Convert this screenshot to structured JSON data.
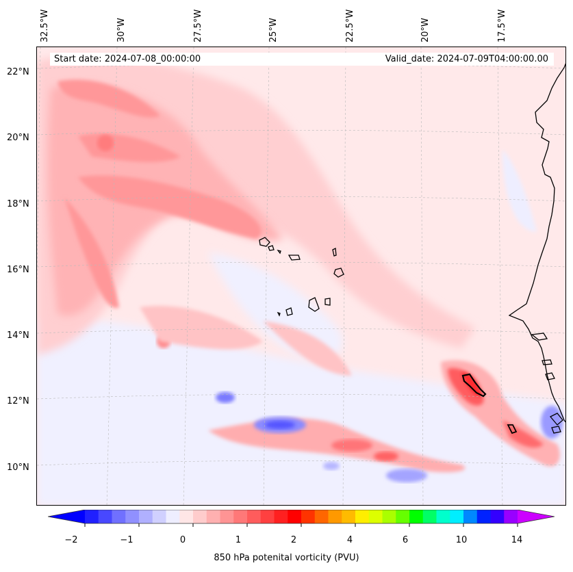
{
  "map": {
    "start_date": "Start date: 2024-07-08_00:00:00",
    "valid_date": "Valid_date: 2024-07-09T04:00:00.00",
    "longitude_labels": [
      "32.5°W",
      "30°W",
      "27.5°W",
      "25°W",
      "22.5°W",
      "20°W",
      "17.5°W"
    ],
    "latitude_labels": [
      "22°N",
      "20°N",
      "18°N",
      "16°N",
      "14°N",
      "12°N",
      "10°N"
    ]
  },
  "colorbar": {
    "title": "850 hPa potenital vorticity (PVU)",
    "tick_labels": [
      "−2",
      "−1",
      "0",
      "1",
      "2",
      "4",
      "6",
      "10",
      "14"
    ],
    "colors": [
      "#0000ff",
      "#2020ff",
      "#4848ff",
      "#7070ff",
      "#9090ff",
      "#b0b0ff",
      "#d0d0ff",
      "#eeeeff",
      "#ffe6e6",
      "#ffcccc",
      "#ffb0b0",
      "#ff9494",
      "#ff7878",
      "#ff5c5c",
      "#ff4040",
      "#ff2020",
      "#ff0000",
      "#ff3300",
      "#ff6600",
      "#ff9900",
      "#ffbb00",
      "#ffee00",
      "#ddff00",
      "#aaff00",
      "#66ff00",
      "#00ff00",
      "#00ff66",
      "#00ffcc",
      "#00eeff",
      "#0088ff",
      "#0022ff",
      "#3300ff",
      "#9900ff",
      "#cc00ff"
    ]
  },
  "icons": {
    "coastline": "coastline-icon",
    "islands": "island-icon"
  }
}
